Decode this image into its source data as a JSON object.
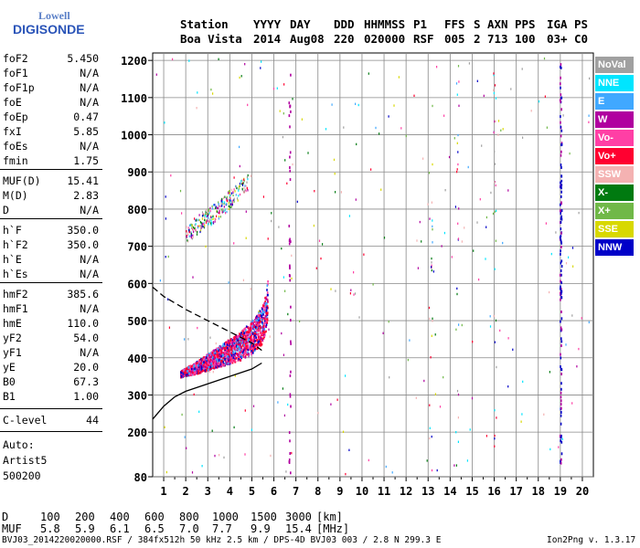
{
  "logo": {
    "line1": "Lowell",
    "line2": "DIGISONDE"
  },
  "header": {
    "labels": [
      "Station",
      "YYYY",
      "DAY",
      "DDD",
      "HHMMSS",
      "P1",
      "FFS",
      "S",
      "AXN",
      "PPS",
      "IGA",
      "PS"
    ],
    "values": [
      "Boa Vista",
      "2014",
      "Aug08",
      "220",
      "020000",
      "RSF",
      "005",
      "2",
      "713",
      "100",
      "03+",
      "C0"
    ]
  },
  "params": [
    {
      "k": "foF2",
      "v": "5.450"
    },
    {
      "k": "foF1",
      "v": "N/A"
    },
    {
      "k": "foF1p",
      "v": "N/A"
    },
    {
      "k": "foE",
      "v": "N/A"
    },
    {
      "k": "foEp",
      "v": "0.47"
    },
    {
      "k": "fxI",
      "v": "5.85"
    },
    {
      "k": "foEs",
      "v": "N/A"
    },
    {
      "k": "fmin",
      "v": "1.75"
    },
    {
      "k": "MUF(D)",
      "v": "15.41"
    },
    {
      "k": "M(D)",
      "v": "2.83"
    },
    {
      "k": "D",
      "v": "N/A"
    },
    {
      "k": "h`F",
      "v": "350.0"
    },
    {
      "k": "h`F2",
      "v": "350.0"
    },
    {
      "k": "h`E",
      "v": "N/A"
    },
    {
      "k": "h`Es",
      "v": "N/A"
    },
    {
      "k": "hmF2",
      "v": "385.6"
    },
    {
      "k": "hmF1",
      "v": "N/A"
    },
    {
      "k": "hmE",
      "v": "110.0"
    },
    {
      "k": "yF2",
      "v": "54.0"
    },
    {
      "k": "yF1",
      "v": "N/A"
    },
    {
      "k": "yE",
      "v": "20.0"
    },
    {
      "k": "B0",
      "v": "67.3"
    },
    {
      "k": "B1",
      "v": "1.00"
    },
    {
      "k": "C-level",
      "v": "44"
    }
  ],
  "notes": [
    "Auto:",
    "Artist5",
    "500200"
  ],
  "legend": [
    {
      "label": "NoVal",
      "color": "#a0a0a0"
    },
    {
      "label": "NNE",
      "color": "#00e5ff"
    },
    {
      "label": "E",
      "color": "#40a8ff"
    },
    {
      "label": "W",
      "color": "#b0009f"
    },
    {
      "label": "Vo-",
      "color": "#ff3fa5"
    },
    {
      "label": "Vo+",
      "color": "#ff0030"
    },
    {
      "label": "SSW",
      "color": "#f4b2b2"
    },
    {
      "label": "X-",
      "color": "#007a10"
    },
    {
      "label": "X+",
      "color": "#70b848"
    },
    {
      "label": "SSE",
      "color": "#d8d800"
    },
    {
      "label": "NNW",
      "color": "#0000c8"
    }
  ],
  "muf_table": {
    "d_label": "D",
    "d_values": [
      "100",
      "200",
      "400",
      "600",
      "800",
      "1000",
      "1500",
      "3000"
    ],
    "d_unit": "[km]",
    "muf_label": "MUF",
    "muf_values": [
      "5.8",
      "5.9",
      "6.1",
      "6.5",
      "7.0",
      "7.7",
      "9.9",
      "15.4"
    ],
    "muf_unit": "[MHz]"
  },
  "footer": {
    "left": "BVJ03_2014220020000.RSF / 384fx512h 50 kHz 2.5 km / DPS-4D BVJ03 003 / 2.8 N 299.3 E",
    "right": "Ion2Png v. 1.3.17"
  },
  "chart_data": {
    "type": "scatter",
    "x_ticks": [
      1,
      2,
      3,
      4,
      5,
      6,
      7,
      8,
      9,
      10,
      11,
      12,
      13,
      14,
      15,
      16,
      17,
      18,
      19,
      20
    ],
    "y_ticks": [
      80,
      200,
      300,
      400,
      500,
      600,
      700,
      800,
      900,
      1000,
      1100,
      1200
    ],
    "xlim": [
      0.5,
      20.5
    ],
    "ylim": [
      80,
      1220
    ],
    "grid": true,
    "legend_position": "right",
    "ordinary_trace": [
      [
        1.75,
        355
      ],
      [
        2.5,
        370
      ],
      [
        3.5,
        395
      ],
      [
        4.5,
        420
      ],
      [
        5.0,
        440
      ],
      [
        5.45,
        470
      ],
      [
        5.6,
        500
      ],
      [
        5.7,
        540
      ]
    ],
    "second_hop_trace": [
      [
        2.0,
        730
      ],
      [
        2.5,
        760
      ],
      [
        3.0,
        780
      ],
      [
        3.5,
        800
      ],
      [
        4.0,
        830
      ],
      [
        4.5,
        860
      ],
      [
        4.8,
        880
      ]
    ],
    "profile_curve": [
      [
        0.5,
        235
      ],
      [
        1.0,
        270
      ],
      [
        1.5,
        295
      ],
      [
        2.0,
        310
      ],
      [
        3.0,
        330
      ],
      [
        4.0,
        350
      ],
      [
        5.0,
        370
      ],
      [
        5.45,
        386
      ]
    ],
    "topside_dashed": [
      [
        0.5,
        590
      ],
      [
        1.0,
        565
      ],
      [
        2.0,
        530
      ],
      [
        3.0,
        500
      ],
      [
        4.0,
        470
      ],
      [
        5.0,
        440
      ],
      [
        5.45,
        420
      ]
    ],
    "vertical_line_x": [
      6.7,
      19.0
    ]
  }
}
